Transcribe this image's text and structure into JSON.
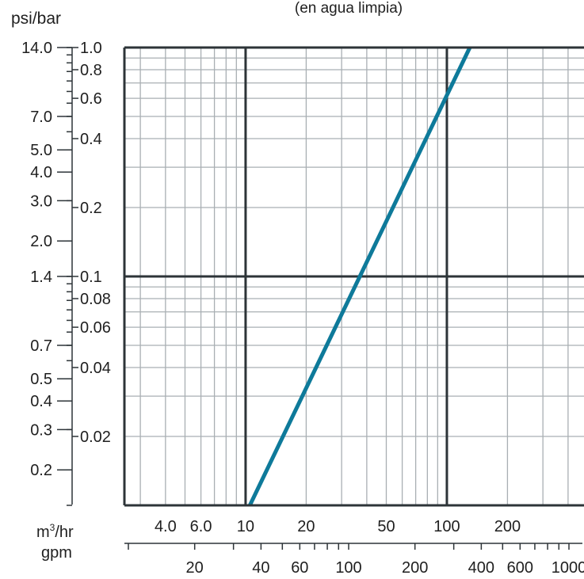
{
  "chart_data": {
    "type": "line",
    "title": "(en agua limpia)",
    "xscale": "log",
    "yscale": "log",
    "grid": true,
    "x_axes": {
      "primary": {
        "label": "m³/hr",
        "label_base": "m",
        "label_sup": "3",
        "label_suffix": "/hr",
        "range": [
          2.5,
          480
        ],
        "ticks": [
          {
            "value": 4,
            "label": "4.0"
          },
          {
            "value": 6,
            "label": "6.0"
          },
          {
            "value": 10,
            "label": "10"
          },
          {
            "value": 20,
            "label": "20"
          },
          {
            "value": 50,
            "label": "50"
          },
          {
            "value": 100,
            "label": "100"
          },
          {
            "value": 200,
            "label": "200"
          }
        ]
      },
      "secondary": {
        "label": "gpm",
        "ticks": [
          {
            "value": 20,
            "label": "20"
          },
          {
            "value": 40,
            "label": "40"
          },
          {
            "value": 60,
            "label": "60"
          },
          {
            "value": 100,
            "label": "100"
          },
          {
            "value": 200,
            "label": "200"
          },
          {
            "value": 400,
            "label": "400"
          },
          {
            "value": 600,
            "label": "600"
          },
          {
            "value": 1000,
            "label": "1000"
          }
        ]
      }
    },
    "y_axes": {
      "primary": {
        "label": "bar",
        "range": [
          0.01,
          1.0
        ],
        "ticks": [
          {
            "value": 1.0,
            "label": "1.0"
          },
          {
            "value": 0.8,
            "label": "0.8"
          },
          {
            "value": 0.6,
            "label": "0.6"
          },
          {
            "value": 0.4,
            "label": "0.4"
          },
          {
            "value": 0.2,
            "label": "0.2"
          },
          {
            "value": 0.1,
            "label": "0.1"
          },
          {
            "value": 0.08,
            "label": "0.08"
          },
          {
            "value": 0.06,
            "label": "0.06"
          },
          {
            "value": 0.04,
            "label": "0.04"
          },
          {
            "value": 0.02,
            "label": "0.02"
          }
        ]
      },
      "secondary": {
        "label": "psi/bar",
        "ticks": [
          {
            "value": 14.0,
            "label": "14.0"
          },
          {
            "value": 7.0,
            "label": "7.0"
          },
          {
            "value": 5.0,
            "label": "5.0"
          },
          {
            "value": 4.0,
            "label": "4.0"
          },
          {
            "value": 3.0,
            "label": "3.0"
          },
          {
            "value": 2.0,
            "label": "2.0"
          },
          {
            "value": 1.4,
            "label": "1.4"
          },
          {
            "value": 0.7,
            "label": "0.7"
          },
          {
            "value": 0.5,
            "label": "0.5"
          },
          {
            "value": 0.4,
            "label": "0.4"
          },
          {
            "value": 0.3,
            "label": "0.3"
          },
          {
            "value": 0.2,
            "label": "0.2"
          }
        ]
      }
    },
    "series": [
      {
        "color": "#0e7a9a",
        "x": [
          10.5,
          130
        ],
        "y": [
          0.01,
          1.0
        ]
      }
    ]
  },
  "colors": {
    "major_grid": "#2d3438",
    "minor_grid": "#a9afb3",
    "axis": "#2d3438",
    "line": "#0e7a9a"
  }
}
